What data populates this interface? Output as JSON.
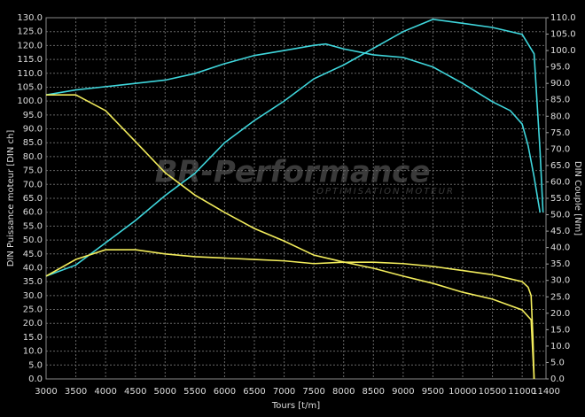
{
  "chart_data": {
    "type": "line",
    "background": "#000000",
    "grid": true,
    "watermark": "BR-Performance",
    "watermark_subtitle": "OPTIMISATION MOTEUR",
    "xlabel": "Tours [t/m]",
    "ylabel": "DIN Puissance moteur [DIN ch]",
    "y2label": "DIN Couple [Nm]",
    "xlim": [
      3000,
      11400
    ],
    "xticks": [
      3000,
      3500,
      4000,
      4500,
      5000,
      5500,
      6000,
      6500,
      7000,
      7500,
      8000,
      8500,
      9000,
      9500,
      10000,
      10500,
      11000,
      11400
    ],
    "ylim": [
      0,
      130
    ],
    "yticks": [
      {
        "value": 0,
        "label": "0.0"
      },
      {
        "value": 5,
        "label": "5.0"
      },
      {
        "value": 10,
        "label": "10.0"
      },
      {
        "value": 15,
        "label": "15.0"
      },
      {
        "value": 20,
        "label": "20.0"
      },
      {
        "value": 25,
        "label": "25.0"
      },
      {
        "value": 30,
        "label": "30.0"
      },
      {
        "value": 35,
        "label": "35.0"
      },
      {
        "value": 40,
        "label": "40.0"
      },
      {
        "value": 45,
        "label": "45.0"
      },
      {
        "value": 50,
        "label": "50.0"
      },
      {
        "value": 55,
        "label": "55.0"
      },
      {
        "value": 60,
        "label": "60.0"
      },
      {
        "value": 65,
        "label": "65.0"
      },
      {
        "value": 70,
        "label": "70.0"
      },
      {
        "value": 75,
        "label": "75.0"
      },
      {
        "value": 80,
        "label": "80.0"
      },
      {
        "value": 85,
        "label": "85.0"
      },
      {
        "value": 90,
        "label": "90.0"
      },
      {
        "value": 95,
        "label": "95.0"
      },
      {
        "value": 100,
        "label": "100.0"
      },
      {
        "value": 105,
        "label": "105.0"
      },
      {
        "value": 110,
        "label": "110.0"
      },
      {
        "value": 115,
        "label": "115.0"
      },
      {
        "value": 120,
        "label": "120.0"
      },
      {
        "value": 125,
        "label": "125.0"
      },
      {
        "value": 130,
        "label": "130.0"
      }
    ],
    "y2lim": [
      0,
      110
    ],
    "y2ticks": [
      {
        "value": 0,
        "label": "0.0"
      },
      {
        "value": 5,
        "label": "5.0"
      },
      {
        "value": 10,
        "label": "10.0"
      },
      {
        "value": 15,
        "label": "15.0"
      },
      {
        "value": 20,
        "label": "20.0"
      },
      {
        "value": 25,
        "label": "25.0"
      },
      {
        "value": 30,
        "label": "30.0"
      },
      {
        "value": 35,
        "label": "35.0"
      },
      {
        "value": 40,
        "label": "40.0"
      },
      {
        "value": 45,
        "label": "45.0"
      },
      {
        "value": 50,
        "label": "50.0"
      },
      {
        "value": 55,
        "label": "55.0"
      },
      {
        "value": 60,
        "label": "60.0"
      },
      {
        "value": 65,
        "label": "65.0"
      },
      {
        "value": 70,
        "label": "70.0"
      },
      {
        "value": 75,
        "label": "75.0"
      },
      {
        "value": 80,
        "label": "80.0"
      },
      {
        "value": 85,
        "label": "85.0"
      },
      {
        "value": 90,
        "label": "90.0"
      },
      {
        "value": 95,
        "label": "95.0"
      },
      {
        "value": 100,
        "label": "100.0"
      },
      {
        "value": 105,
        "label": "105.0"
      },
      {
        "value": 110,
        "label": "110.0"
      }
    ],
    "series": [
      {
        "color": "#3fd6dc",
        "x": [
          3000,
          3500,
          4000,
          4500,
          5000,
          5500,
          6000,
          6500,
          7000,
          7500,
          8000,
          8500,
          9000,
          9500,
          10000,
          10500,
          11000,
          11200,
          11300,
          11350
        ],
        "values": [
          37,
          41,
          49,
          57,
          66,
          74,
          85,
          93,
          100,
          108,
          113,
          119,
          125,
          129.4,
          128,
          126.5,
          124,
          117,
          82,
          60
        ]
      },
      {
        "color": "#3fd6dc",
        "axis": "y2",
        "x": [
          3000,
          3500,
          4000,
          4500,
          5000,
          5500,
          6000,
          6500,
          7000,
          7500,
          7700,
          8000,
          8500,
          9000,
          9500,
          10000,
          10500,
          10800,
          11000,
          11100,
          11200,
          11300
        ],
        "values": [
          86.5,
          88,
          89,
          90,
          91,
          93,
          96,
          98.5,
          100,
          101.6,
          102,
          100.5,
          98.7,
          97.9,
          95,
          90,
          84.4,
          81.7,
          77.6,
          71,
          61.5,
          50.7
        ]
      },
      {
        "color": "#f2ec5c",
        "x": [
          3000,
          3500,
          4000,
          4500,
          5000,
          5500,
          6000,
          6500,
          7000,
          7500,
          8000,
          8500,
          9000,
          9500,
          10000,
          10500,
          11000,
          11100,
          11150,
          11180,
          11200
        ],
        "values": [
          37,
          43,
          46.5,
          46.5,
          45,
          44,
          43.5,
          43,
          42.5,
          41.5,
          42,
          42,
          41.5,
          40.5,
          39,
          37.5,
          35,
          33,
          30,
          15,
          0
        ]
      },
      {
        "color": "#f2ec5c",
        "axis": "y2",
        "x": [
          3000,
          3500,
          4000,
          4500,
          5000,
          5500,
          6000,
          6500,
          7000,
          7500,
          8000,
          8500,
          9000,
          9500,
          10000,
          10500,
          11000,
          11150,
          11200
        ],
        "values": [
          86.5,
          86.5,
          81.7,
          72.3,
          62.8,
          56,
          50.7,
          45.8,
          42,
          37.7,
          35.6,
          33.7,
          31.3,
          29.1,
          26.4,
          24.3,
          21,
          18,
          0
        ]
      }
    ]
  }
}
